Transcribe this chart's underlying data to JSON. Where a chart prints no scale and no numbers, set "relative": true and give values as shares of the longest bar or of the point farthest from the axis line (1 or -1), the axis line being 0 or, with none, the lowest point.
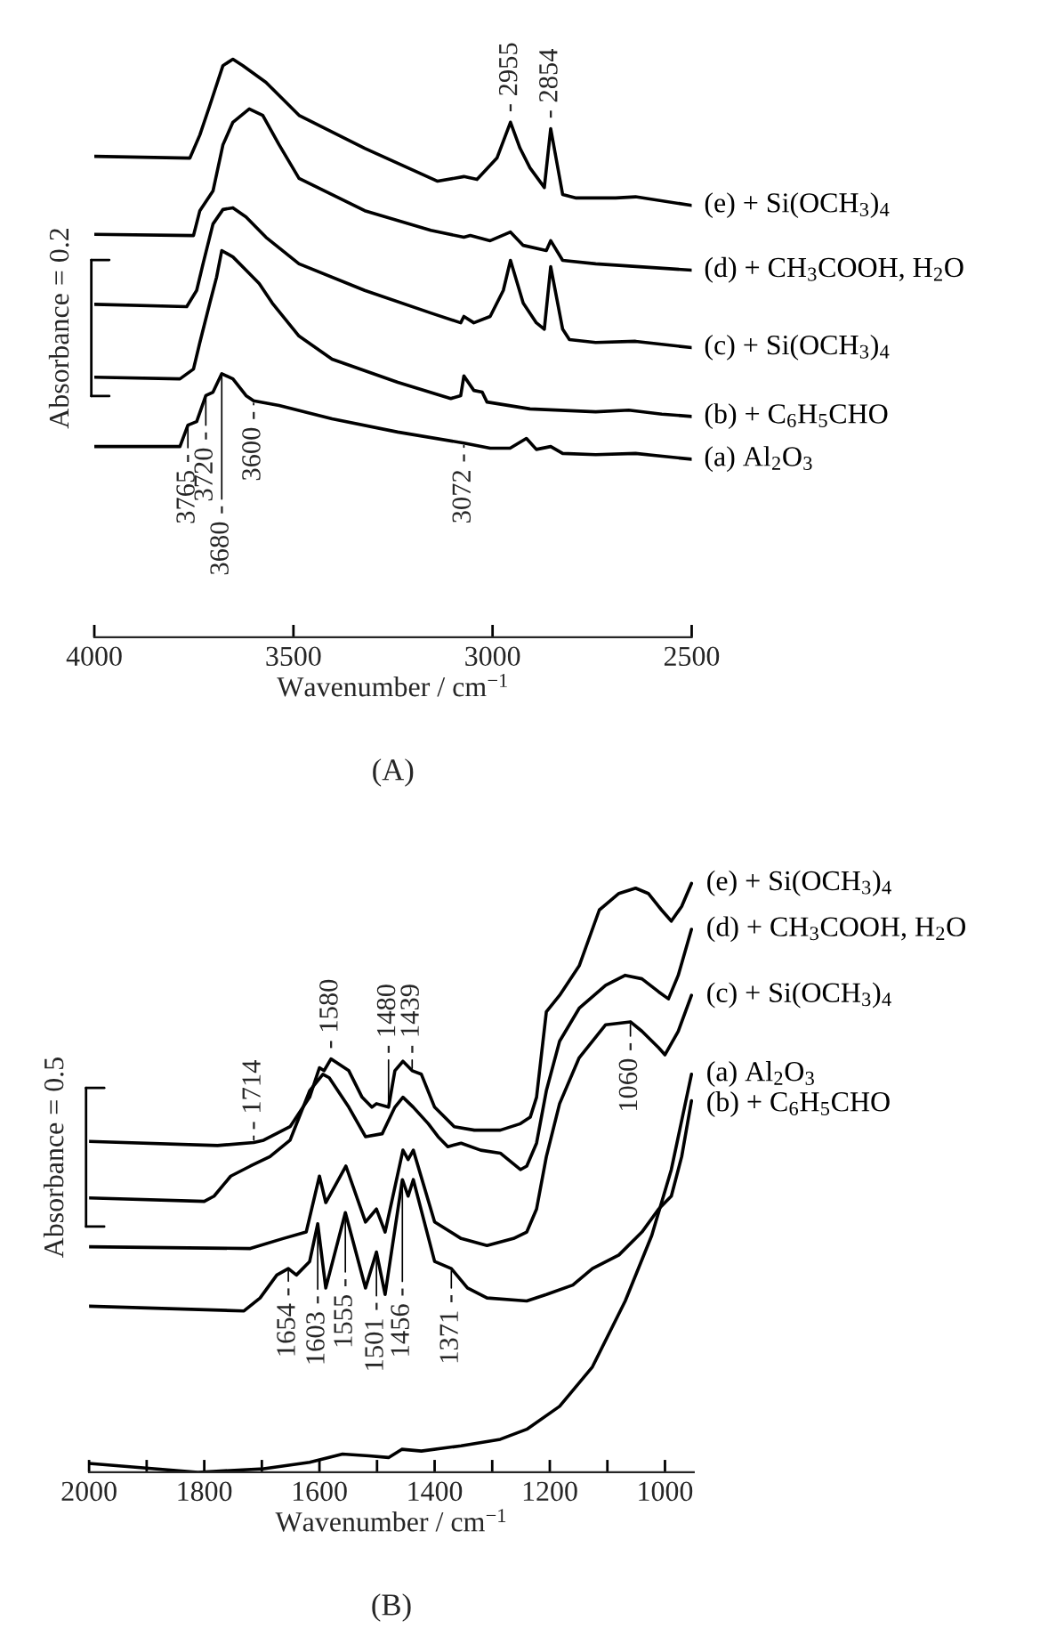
{
  "chart_data": [
    {
      "type": "line",
      "title": "(A)",
      "xlabel": "Wavenumber / cm$^{−1}$",
      "ylabel": "Absorbance = 0.2",
      "relative": true,
      "xlim": [
        4000,
        2500
      ],
      "xticks": [
        4000,
        3500,
        3000,
        2500
      ],
      "series": [
        {
          "name": "(a) Al$_{2}$O$_{3}$",
          "color": "#000000",
          "x": [
            4000,
            3785,
            3765,
            3743,
            3720,
            3702,
            3680,
            3652,
            3619,
            3600,
            3536,
            3403,
            3238,
            3072,
            3006,
            2956,
            2915,
            2890,
            2854,
            2824,
            2741,
            2641,
            2500
          ],
          "values": [
            0.33,
            0.33,
            0.367,
            0.373,
            0.418,
            0.424,
            0.456,
            0.447,
            0.418,
            0.409,
            0.401,
            0.378,
            0.355,
            0.336,
            0.327,
            0.327,
            0.344,
            0.325,
            0.33,
            0.318,
            0.316,
            0.318,
            0.308
          ]
        },
        {
          "name": "(b) + C$_{6}$H$_{5}$CHO",
          "color": "#000000",
          "x": [
            4000,
            3785,
            3751,
            3735,
            3710,
            3693,
            3680,
            3652,
            3619,
            3586,
            3553,
            3486,
            3403,
            3238,
            3105,
            3080,
            3072,
            3047,
            3026,
            3014,
            2906,
            2741,
            2658,
            2575,
            2500
          ],
          "values": [
            0.45,
            0.447,
            0.464,
            0.51,
            0.578,
            0.623,
            0.669,
            0.658,
            0.635,
            0.612,
            0.578,
            0.521,
            0.481,
            0.441,
            0.413,
            0.418,
            0.452,
            0.427,
            0.424,
            0.407,
            0.395,
            0.39,
            0.393,
            0.386,
            0.382
          ]
        },
        {
          "name": "(c) + Si(OCH$_{3}$)$_{4}$",
          "color": "#000000",
          "x": [
            4000,
            3768,
            3743,
            3727,
            3702,
            3677,
            3652,
            3619,
            3569,
            3486,
            3321,
            3155,
            3080,
            3072,
            3047,
            3006,
            2973,
            2955,
            2923,
            2890,
            2870,
            2854,
            2824,
            2807,
            2741,
            2641,
            2500
          ],
          "values": [
            0.576,
            0.572,
            0.6,
            0.646,
            0.715,
            0.74,
            0.743,
            0.727,
            0.692,
            0.646,
            0.6,
            0.561,
            0.544,
            0.555,
            0.544,
            0.555,
            0.6,
            0.652,
            0.578,
            0.544,
            0.533,
            0.641,
            0.533,
            0.515,
            0.51,
            0.512,
            0.501
          ]
        },
        {
          "name": "(d) + CH$_{3}$COOH, H$_{2}$O",
          "color": "#000000",
          "x": [
            4000,
            3751,
            3735,
            3702,
            3677,
            3652,
            3611,
            3577,
            3536,
            3486,
            3321,
            3155,
            3072,
            3056,
            3006,
            2955,
            2923,
            2865,
            2854,
            2824,
            2741,
            2500
          ],
          "values": [
            0.697,
            0.695,
            0.738,
            0.772,
            0.852,
            0.891,
            0.914,
            0.903,
            0.852,
            0.794,
            0.738,
            0.704,
            0.692,
            0.695,
            0.686,
            0.701,
            0.678,
            0.669,
            0.686,
            0.652,
            0.646,
            0.635
          ]
        },
        {
          "name": "(e) + Si(OCH$_{3}$)$_{4}$",
          "color": "#000000",
          "x": [
            4000,
            3760,
            3735,
            3710,
            3677,
            3652,
            3627,
            3569,
            3486,
            3321,
            3138,
            3072,
            3039,
            2989,
            2955,
            2931,
            2906,
            2870,
            2854,
            2824,
            2790,
            2691,
            2641,
            2500
          ],
          "values": [
            0.832,
            0.829,
            0.869,
            0.92,
            0.989,
            1.0,
            0.989,
            0.96,
            0.903,
            0.846,
            0.789,
            0.797,
            0.792,
            0.829,
            0.891,
            0.846,
            0.812,
            0.778,
            0.88,
            0.766,
            0.76,
            0.76,
            0.762,
            0.747
          ]
        }
      ],
      "annotations": [
        {
          "text": "- 2955",
          "x": 2955,
          "y": 0.891
        },
        {
          "text": "- 2854",
          "x": 2854,
          "y": 0.88
        },
        {
          "text": "3765 -",
          "x": 3765,
          "y": 0.367
        },
        {
          "text": "3720 -",
          "x": 3720,
          "y": 0.418
        },
        {
          "text": "3680 -",
          "x": 3680,
          "y": 0.456
        },
        {
          "text": "3600 -",
          "x": 3600,
          "y": 0.409
        },
        {
          "text": "3072 -",
          "x": 3072,
          "y": 0.336
        }
      ]
    },
    {
      "type": "line",
      "title": "(B)",
      "xlabel": "Wavenumber / cm$^{−1}$",
      "ylabel": "Absorbance = 0.5",
      "relative": true,
      "xlim": [
        2000,
        950
      ],
      "xticks": [
        2000,
        {
          "value": 1900,
          "label": null
        },
        1800,
        {
          "value": 1700,
          "label": null
        },
        1600,
        {
          "value": 1500,
          "label": null
        },
        1400,
        {
          "value": 1300,
          "label": null
        },
        1200,
        {
          "value": 1100,
          "label": null
        },
        1000
      ],
      "series": [
        {
          "name": "(a) Al$_{2}$O$_{3}$",
          "color": "#000000",
          "x": [
            2000,
            1811,
            1697,
            1617,
            1560,
            1514,
            1480,
            1457,
            1423,
            1354,
            1286,
            1240,
            1183,
            1126,
            1069,
            1023,
            989,
            954
          ],
          "values": [
            0.015,
            0,
            0.006,
            0.017,
            0.031,
            0.028,
            0.025,
            0.039,
            0.036,
            0.045,
            0.056,
            0.073,
            0.112,
            0.179,
            0.291,
            0.402,
            0.514,
            0.676
          ]
        },
        {
          "name": "(b) + C$_{6}$H$_{5}$CHO",
          "color": "#000000",
          "x": [
            2000,
            1731,
            1703,
            1674,
            1654,
            1640,
            1617,
            1603,
            1589,
            1555,
            1520,
            1501,
            1486,
            1456,
            1446,
            1437,
            1400,
            1371,
            1343,
            1309,
            1240,
            1206,
            1160,
            1126,
            1080,
            1040,
            1011,
            989,
            971,
            954
          ],
          "values": [
            0.282,
            0.274,
            0.296,
            0.335,
            0.346,
            0.335,
            0.358,
            0.422,
            0.313,
            0.441,
            0.313,
            0.374,
            0.302,
            0.497,
            0.469,
            0.497,
            0.358,
            0.346,
            0.313,
            0.296,
            0.291,
            0.302,
            0.318,
            0.346,
            0.369,
            0.408,
            0.447,
            0.469,
            0.536,
            0.631
          ]
        },
        {
          "name": "(c) + Si(OCH$_{3}$)$_{4}$",
          "color": "#000000",
          "x": [
            2000,
            1720,
            1663,
            1623,
            1600,
            1589,
            1554,
            1520,
            1501,
            1486,
            1455,
            1446,
            1437,
            1400,
            1354,
            1309,
            1263,
            1240,
            1223,
            1206,
            1183,
            1149,
            1103,
            1060,
            1040,
            1011,
            1000,
            977,
            954
          ],
          "values": [
            0.383,
            0.38,
            0.397,
            0.408,
            0.503,
            0.458,
            0.52,
            0.425,
            0.447,
            0.408,
            0.547,
            0.531,
            0.547,
            0.425,
            0.397,
            0.385,
            0.397,
            0.408,
            0.447,
            0.536,
            0.626,
            0.704,
            0.76,
            0.765,
            0.749,
            0.721,
            0.709,
            0.749,
            0.81
          ]
        },
        {
          "name": "(d) + CH$_{3}$COOH, H$_{2}$O",
          "color": "#000000",
          "x": [
            2000,
            1800,
            1783,
            1754,
            1720,
            1686,
            1651,
            1617,
            1594,
            1583,
            1549,
            1520,
            1491,
            1469,
            1455,
            1437,
            1411,
            1394,
            1377,
            1354,
            1320,
            1286,
            1251,
            1240,
            1223,
            1206,
            1183,
            1149,
            1103,
            1069,
            1040,
            1011,
            994,
            977,
            954
          ],
          "values": [
            0.466,
            0.46,
            0.469,
            0.503,
            0.52,
            0.536,
            0.564,
            0.648,
            0.676,
            0.67,
            0.62,
            0.57,
            0.575,
            0.62,
            0.637,
            0.62,
            0.592,
            0.57,
            0.553,
            0.559,
            0.547,
            0.542,
            0.514,
            0.52,
            0.559,
            0.648,
            0.732,
            0.788,
            0.827,
            0.844,
            0.838,
            0.816,
            0.804,
            0.844,
            0.922
          ]
        },
        {
          "name": "(e) + Si(OCH$_{3}$)$_{4}$",
          "color": "#000000",
          "x": [
            2000,
            1777,
            1714,
            1697,
            1651,
            1617,
            1600,
            1592,
            1580,
            1549,
            1526,
            1509,
            1501,
            1480,
            1469,
            1455,
            1439,
            1423,
            1400,
            1366,
            1331,
            1286,
            1251,
            1234,
            1223,
            1206,
            1183,
            1149,
            1114,
            1080,
            1051,
            1029,
            1006,
            989,
            971,
            954
          ],
          "values": [
            0.562,
            0.555,
            0.56,
            0.564,
            0.587,
            0.637,
            0.687,
            0.682,
            0.702,
            0.682,
            0.637,
            0.62,
            0.626,
            0.62,
            0.682,
            0.698,
            0.682,
            0.676,
            0.62,
            0.587,
            0.581,
            0.581,
            0.592,
            0.603,
            0.637,
            0.782,
            0.81,
            0.86,
            0.955,
            0.983,
            0.992,
            0.983,
            0.955,
            0.936,
            0.961,
            1.0
          ]
        }
      ],
      "annotations": [
        {
          "text": "- 1714",
          "x": 1714,
          "y": 0.56
        },
        {
          "text": "- 1580",
          "x": 1580,
          "y": 0.702
        },
        {
          "text": "- 1439",
          "x": 1439,
          "y": 0.682
        },
        {
          "text": "- 1480",
          "x": 1480,
          "y": 0.62
        },
        {
          "text": "1060 -",
          "x": 1060,
          "y": 0.765
        },
        {
          "text": "1654 -",
          "x": 1654,
          "y": 0.346
        },
        {
          "text": "1603 -",
          "x": 1603,
          "y": 0.422
        },
        {
          "text": "1555 -",
          "x": 1555,
          "y": 0.441
        },
        {
          "text": "1501 -",
          "x": 1501,
          "y": 0.374
        },
        {
          "text": "1456 -",
          "x": 1456,
          "y": 0.497
        },
        {
          "text": "1371 -",
          "x": 1371,
          "y": 0.346
        }
      ]
    }
  ]
}
